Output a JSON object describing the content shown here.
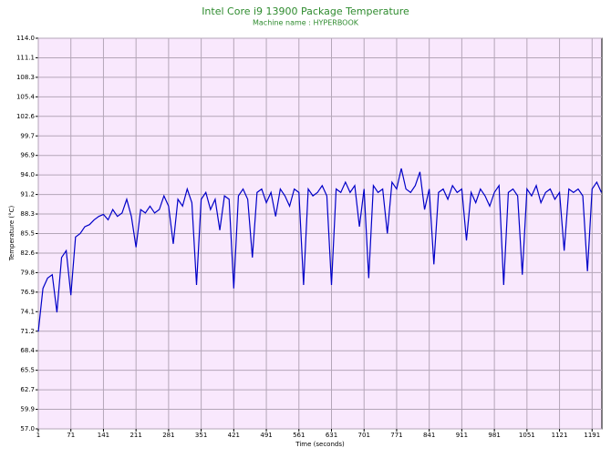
{
  "chart_data": {
    "type": "line",
    "title": "Intel Core i9 13900 Package Temperature",
    "subtitle": "Machine name : HYPERBOOK",
    "x_label": "Time (seconds)",
    "y_label": "Temperature (°C)",
    "color": "#0000c8",
    "grid": true,
    "xlim": [
      1,
      1212
    ],
    "xticks": [
      1,
      71,
      141,
      211,
      281,
      351,
      421,
      491,
      561,
      631,
      701,
      771,
      841,
      911,
      981,
      1051,
      1121,
      1191
    ],
    "ylim": [
      57.0,
      114.0
    ],
    "yticks": [
      {
        "value": 57.0,
        "label": "57.0"
      },
      {
        "value": 59.85,
        "label": "59.9"
      },
      {
        "value": 62.7,
        "label": "62.7"
      },
      {
        "value": 65.55,
        "label": "65.5"
      },
      {
        "value": 68.4,
        "label": "68.4"
      },
      {
        "value": 71.25,
        "label": "71.2"
      },
      {
        "value": 74.1,
        "label": "74.1"
      },
      {
        "value": 76.95,
        "label": "76.9"
      },
      {
        "value": 79.8,
        "label": "79.8"
      },
      {
        "value": 82.65,
        "label": "82.6"
      },
      {
        "value": 85.5,
        "label": "85.5"
      },
      {
        "value": 88.35,
        "label": "88.3"
      },
      {
        "value": 91.2,
        "label": "91.2"
      },
      {
        "value": 94.05,
        "label": "94.0"
      },
      {
        "value": 96.9,
        "label": "96.9"
      },
      {
        "value": 99.75,
        "label": "99.7"
      },
      {
        "value": 102.6,
        "label": "102.6"
      },
      {
        "value": 105.45,
        "label": "105.4"
      },
      {
        "value": 108.3,
        "label": "108.3"
      },
      {
        "value": 111.15,
        "label": "111.1"
      },
      {
        "value": 114.0,
        "label": "114.0"
      }
    ],
    "x": [
      1,
      11,
      21,
      31,
      41,
      51,
      61,
      71,
      81,
      91,
      101,
      111,
      121,
      131,
      141,
      151,
      161,
      171,
      181,
      191,
      201,
      211,
      221,
      231,
      241,
      251,
      261,
      271,
      281,
      291,
      301,
      311,
      321,
      331,
      341,
      351,
      361,
      371,
      381,
      391,
      401,
      411,
      421,
      431,
      441,
      451,
      461,
      471,
      481,
      491,
      501,
      511,
      521,
      531,
      541,
      551,
      561,
      571,
      581,
      591,
      601,
      611,
      621,
      631,
      641,
      651,
      661,
      671,
      681,
      691,
      701,
      711,
      721,
      731,
      741,
      751,
      761,
      771,
      781,
      791,
      801,
      811,
      821,
      831,
      841,
      851,
      861,
      871,
      881,
      891,
      901,
      911,
      921,
      931,
      941,
      951,
      961,
      971,
      981,
      991,
      1001,
      1011,
      1021,
      1031,
      1041,
      1051,
      1061,
      1071,
      1081,
      1091,
      1101,
      1111,
      1121,
      1131,
      1141,
      1151,
      1161,
      1171,
      1181,
      1191,
      1201,
      1211
    ],
    "values": [
      71.2,
      77.5,
      79.0,
      79.5,
      74.0,
      82.0,
      83.0,
      76.5,
      85.0,
      85.5,
      86.5,
      86.8,
      87.5,
      88.0,
      88.3,
      87.5,
      89.0,
      88.0,
      88.5,
      90.5,
      88.0,
      83.5,
      89.0,
      88.5,
      89.5,
      88.5,
      89.0,
      91.0,
      89.5,
      84.0,
      90.5,
      89.5,
      92.0,
      90.0,
      78.0,
      90.5,
      91.5,
      89.0,
      90.5,
      86.0,
      91.0,
      90.5,
      77.5,
      91.0,
      92.0,
      90.5,
      82.0,
      91.5,
      92.0,
      90.0,
      91.5,
      88.0,
      92.0,
      91.0,
      89.5,
      92.0,
      91.5,
      78.0,
      92.0,
      91.0,
      91.5,
      92.5,
      91.0,
      78.0,
      92.0,
      91.5,
      93.0,
      91.5,
      92.5,
      86.5,
      92.0,
      79.0,
      92.5,
      91.5,
      92.0,
      85.5,
      93.0,
      92.0,
      95.0,
      92.0,
      91.5,
      92.5,
      94.5,
      89.0,
      92.0,
      81.0,
      91.5,
      92.0,
      90.5,
      92.5,
      91.5,
      92.0,
      84.5,
      91.5,
      90.0,
      92.0,
      91.0,
      89.5,
      91.5,
      92.5,
      78.0,
      91.5,
      92.0,
      91.0,
      79.5,
      92.0,
      91.0,
      92.5,
      90.0,
      91.5,
      92.0,
      90.5,
      91.5,
      83.0,
      92.0,
      91.5,
      92.0,
      91.0,
      80.0,
      92.0,
      93.0,
      91.5
    ]
  }
}
